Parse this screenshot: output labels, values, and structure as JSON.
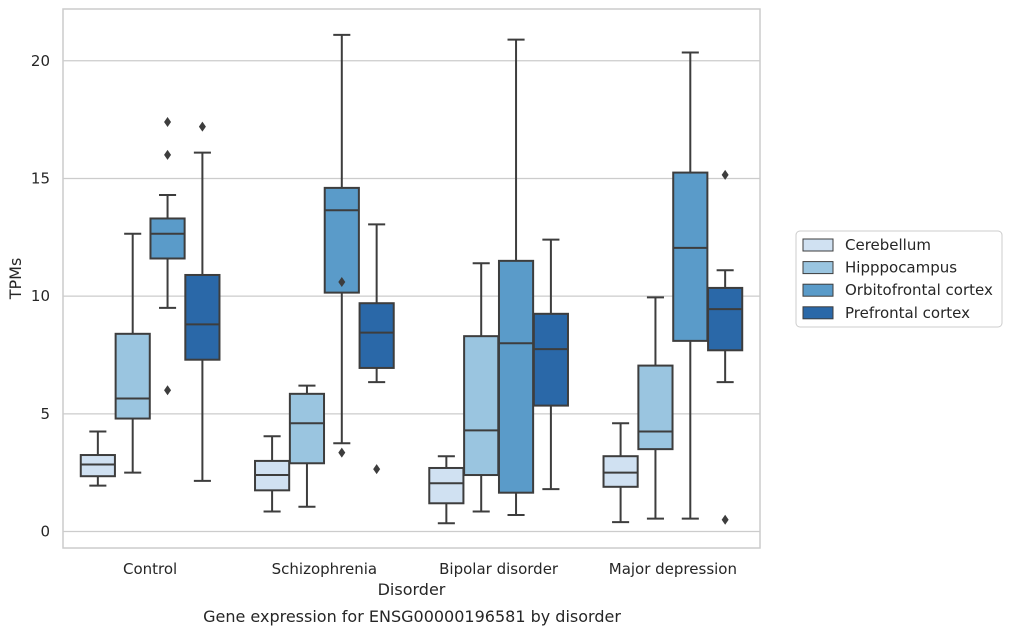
{
  "chart_data": {
    "type": "boxplot",
    "title": "Gene expression for ENSG00000196581 by disorder",
    "xlabel": "Disorder",
    "ylabel": "TPMs",
    "ylim": [
      -0.7,
      22.2
    ],
    "yticks": [
      0,
      5,
      10,
      15,
      20
    ],
    "grid": "horizontal",
    "legend_position": "right",
    "categories": [
      "Control",
      "Schizophrenia",
      "Bipolar disorder",
      "Major depression"
    ],
    "series": [
      {
        "name": "Cerebellum",
        "color": "#d0e1f2",
        "boxes": [
          {
            "whisker_low": 1.95,
            "q1": 2.35,
            "median": 2.85,
            "q3": 3.25,
            "whisker_high": 4.25,
            "outliers": []
          },
          {
            "whisker_low": 0.85,
            "q1": 1.75,
            "median": 2.4,
            "q3": 3.0,
            "whisker_high": 4.05,
            "outliers": []
          },
          {
            "whisker_low": 0.35,
            "q1": 1.2,
            "median": 2.05,
            "q3": 2.7,
            "whisker_high": 3.2,
            "outliers": []
          },
          {
            "whisker_low": 0.4,
            "q1": 1.9,
            "median": 2.5,
            "q3": 3.2,
            "whisker_high": 4.6,
            "outliers": []
          }
        ]
      },
      {
        "name": "Hipppocampus",
        "color": "#9ac5e0",
        "boxes": [
          {
            "whisker_low": 2.5,
            "q1": 4.8,
            "median": 5.65,
            "q3": 8.4,
            "whisker_high": 12.65,
            "outliers": []
          },
          {
            "whisker_low": 1.05,
            "q1": 2.9,
            "median": 4.6,
            "q3": 5.85,
            "whisker_high": 6.2,
            "outliers": []
          },
          {
            "whisker_low": 0.85,
            "q1": 2.4,
            "median": 4.3,
            "q3": 8.3,
            "whisker_high": 11.4,
            "outliers": []
          },
          {
            "whisker_low": 0.55,
            "q1": 3.5,
            "median": 4.25,
            "q3": 7.05,
            "whisker_high": 9.95,
            "outliers": []
          }
        ]
      },
      {
        "name": "Orbitofrontal cortex",
        "color": "#5a9bc9",
        "boxes": [
          {
            "whisker_low": 9.5,
            "q1": 11.6,
            "median": 12.65,
            "q3": 13.3,
            "whisker_high": 14.3,
            "outliers": [
              6.0,
              16.0,
              17.4
            ]
          },
          {
            "whisker_low": 3.75,
            "q1": 10.15,
            "median": 13.65,
            "q3": 14.6,
            "whisker_high": 21.1,
            "outliers": [
              3.35,
              10.6
            ]
          },
          {
            "whisker_low": 0.7,
            "q1": 1.65,
            "median": 8.0,
            "q3": 11.5,
            "whisker_high": 20.9,
            "outliers": []
          },
          {
            "whisker_low": 0.55,
            "q1": 8.1,
            "median": 12.05,
            "q3": 15.25,
            "whisker_high": 20.35,
            "outliers": []
          }
        ]
      },
      {
        "name": "Prefrontal cortex",
        "color": "#2a68a8",
        "boxes": [
          {
            "whisker_low": 2.15,
            "q1": 7.3,
            "median": 8.8,
            "q3": 10.9,
            "whisker_high": 16.1,
            "outliers": [
              17.2
            ]
          },
          {
            "whisker_low": 6.35,
            "q1": 6.95,
            "median": 8.45,
            "q3": 9.7,
            "whisker_high": 13.05,
            "outliers": [
              2.65
            ]
          },
          {
            "whisker_low": 1.8,
            "q1": 5.35,
            "median": 7.75,
            "q3": 9.25,
            "whisker_high": 12.4,
            "outliers": []
          },
          {
            "whisker_low": 6.35,
            "q1": 7.7,
            "median": 9.45,
            "q3": 10.35,
            "whisker_high": 11.1,
            "outliers": [
              0.5,
              15.15
            ]
          }
        ]
      }
    ]
  }
}
